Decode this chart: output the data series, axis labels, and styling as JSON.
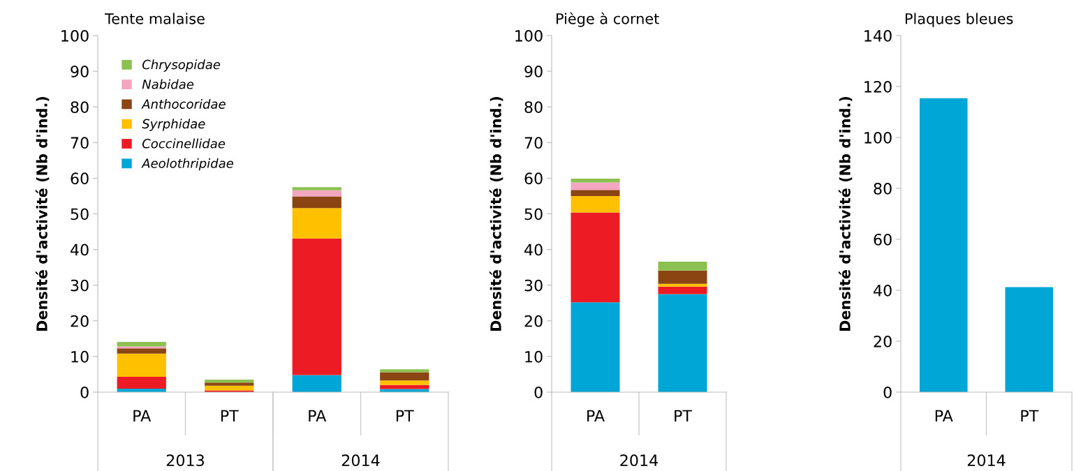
{
  "chart_data": [
    {
      "type": "bar",
      "title": "Tente malaise",
      "ylabel": "Densité d'activité (Nb d'ind.)",
      "categories": [
        "PA",
        "PT",
        "PA",
        "PT"
      ],
      "annotations": [
        "2013",
        "2014"
      ],
      "stacked": true,
      "legend": "top left",
      "grid": false,
      "ylim": [
        0,
        100
      ],
      "yticks": [
        0,
        10,
        20,
        30,
        40,
        50,
        60,
        70,
        80,
        90,
        100
      ],
      "series": [
        {
          "name": "Aeolothripidae",
          "color": "#00a6d6",
          "values": [
            1.0,
            0,
            4.8,
            0.9
          ]
        },
        {
          "name": "Coccinellidae",
          "color": "#ed1c24",
          "values": [
            3.3,
            0.5,
            38.3,
            1.1
          ]
        },
        {
          "name": "Syrphidae",
          "color": "#ffc000",
          "values": [
            6.5,
            1.3,
            8.5,
            1.3
          ]
        },
        {
          "name": "Anthocoridae",
          "color": "#8b4513",
          "values": [
            1.5,
            0.9,
            3.3,
            2.3
          ]
        },
        {
          "name": "Nabidae",
          "color": "#f4a6c0",
          "values": [
            0.5,
            0,
            1.7,
            0
          ]
        },
        {
          "name": "Chrysopidae",
          "color": "#8cc152",
          "values": [
            1.3,
            0.8,
            0.9,
            0.8
          ]
        }
      ]
    },
    {
      "type": "bar",
      "title": "Piège à cornet",
      "ylabel": "Densité d'activité (Nb d'ind.)",
      "categories": [
        "PA",
        "PT"
      ],
      "annotations": [
        "2014"
      ],
      "stacked": true,
      "grid": false,
      "ylim": [
        0,
        100
      ],
      "yticks": [
        0,
        10,
        20,
        30,
        40,
        50,
        60,
        70,
        80,
        90,
        100
      ],
      "series": [
        {
          "color": "#00a6d6",
          "values": [
            25.2,
            27.5
          ]
        },
        {
          "color": "#ed1c24",
          "values": [
            25.2,
            2.1
          ]
        },
        {
          "color": "#ffc000",
          "values": [
            4.6,
            0.8
          ]
        },
        {
          "color": "#8b4513",
          "values": [
            1.7,
            3.7
          ]
        },
        {
          "color": "#f4a6c0",
          "values": [
            2.1,
            0
          ]
        },
        {
          "color": "#8cc152",
          "values": [
            1.1,
            2.5
          ]
        }
      ]
    },
    {
      "type": "bar",
      "title": "Plaques bleues",
      "ylabel": "Densité d'activité (Nb d'ind.)",
      "categories": [
        "PA",
        "PT"
      ],
      "annotations": [
        "2014"
      ],
      "grid": false,
      "ylim": [
        0,
        140
      ],
      "yticks": [
        0,
        20,
        40,
        60,
        80,
        100,
        120,
        140
      ],
      "series": [
        {
          "color": "#00a6d6",
          "values": [
            115.4,
            41.2
          ]
        }
      ]
    }
  ]
}
